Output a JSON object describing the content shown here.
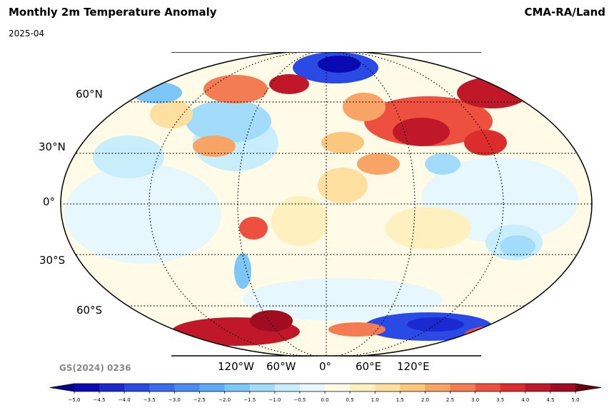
{
  "header": {
    "title": "Monthly 2m Temperature Anomaly",
    "date": "2025-04",
    "source": "CMA-RA/Land"
  },
  "map": {
    "projection": "robinson",
    "lat_labels": [
      "60°N",
      "30°N",
      "0°",
      "30°S",
      "60°S"
    ],
    "lon_labels": [
      "120°W",
      "60°W",
      "0°",
      "60°E",
      "120°E"
    ],
    "watermark": "GS(2024) 0236"
  },
  "colorbar": {
    "ticks": [
      "−5.0",
      "−4.5",
      "−4.0",
      "−3.5",
      "−3.0",
      "−2.5",
      "−2.0",
      "−1.5",
      "−1.0",
      "−0.5",
      "0.0",
      "0.5",
      "1.0",
      "1.5",
      "2.0",
      "2.5",
      "3.0",
      "3.5",
      "4.0",
      "4.5",
      "5.0"
    ],
    "colors": [
      "#0a0ab4",
      "#1a2ad0",
      "#2a4ae6",
      "#3a6af0",
      "#4a8cf4",
      "#5aaaf6",
      "#7cc6f8",
      "#a2dcfa",
      "#c8eefc",
      "#e6f8fe",
      "#fffbe6",
      "#fff0c0",
      "#fde0a0",
      "#fbc67e",
      "#f8a466",
      "#f47c52",
      "#ee5040",
      "#dc2c2c",
      "#c01828",
      "#a00c20"
    ],
    "min_color": "#00008c",
    "max_color": "#6a0010"
  }
}
